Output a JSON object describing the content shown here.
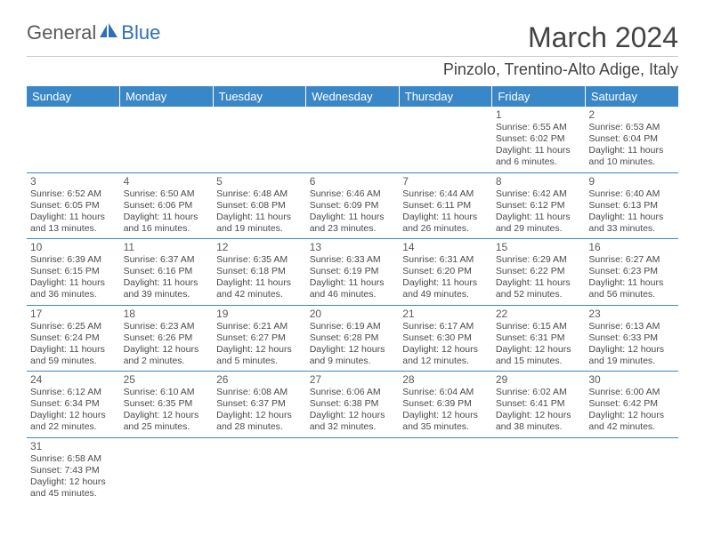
{
  "logo": {
    "general": "General",
    "blue": "Blue"
  },
  "title": "March 2024",
  "location": "Pinzolo, Trentino-Alto Adige, Italy",
  "colors": {
    "header_bg": "#3a87c8",
    "header_text": "#ffffff",
    "grid_line": "#3a87c8",
    "logo_blue": "#2f6fb5",
    "text": "#4a4a4a"
  },
  "daysOfWeek": [
    "Sunday",
    "Monday",
    "Tuesday",
    "Wednesday",
    "Thursday",
    "Friday",
    "Saturday"
  ],
  "weeks": [
    [
      null,
      null,
      null,
      null,
      null,
      {
        "n": "1",
        "sr": "Sunrise: 6:55 AM",
        "ss": "Sunset: 6:02 PM",
        "d1": "Daylight: 11 hours",
        "d2": "and 6 minutes."
      },
      {
        "n": "2",
        "sr": "Sunrise: 6:53 AM",
        "ss": "Sunset: 6:04 PM",
        "d1": "Daylight: 11 hours",
        "d2": "and 10 minutes."
      }
    ],
    [
      {
        "n": "3",
        "sr": "Sunrise: 6:52 AM",
        "ss": "Sunset: 6:05 PM",
        "d1": "Daylight: 11 hours",
        "d2": "and 13 minutes."
      },
      {
        "n": "4",
        "sr": "Sunrise: 6:50 AM",
        "ss": "Sunset: 6:06 PM",
        "d1": "Daylight: 11 hours",
        "d2": "and 16 minutes."
      },
      {
        "n": "5",
        "sr": "Sunrise: 6:48 AM",
        "ss": "Sunset: 6:08 PM",
        "d1": "Daylight: 11 hours",
        "d2": "and 19 minutes."
      },
      {
        "n": "6",
        "sr": "Sunrise: 6:46 AM",
        "ss": "Sunset: 6:09 PM",
        "d1": "Daylight: 11 hours",
        "d2": "and 23 minutes."
      },
      {
        "n": "7",
        "sr": "Sunrise: 6:44 AM",
        "ss": "Sunset: 6:11 PM",
        "d1": "Daylight: 11 hours",
        "d2": "and 26 minutes."
      },
      {
        "n": "8",
        "sr": "Sunrise: 6:42 AM",
        "ss": "Sunset: 6:12 PM",
        "d1": "Daylight: 11 hours",
        "d2": "and 29 minutes."
      },
      {
        "n": "9",
        "sr": "Sunrise: 6:40 AM",
        "ss": "Sunset: 6:13 PM",
        "d1": "Daylight: 11 hours",
        "d2": "and 33 minutes."
      }
    ],
    [
      {
        "n": "10",
        "sr": "Sunrise: 6:39 AM",
        "ss": "Sunset: 6:15 PM",
        "d1": "Daylight: 11 hours",
        "d2": "and 36 minutes."
      },
      {
        "n": "11",
        "sr": "Sunrise: 6:37 AM",
        "ss": "Sunset: 6:16 PM",
        "d1": "Daylight: 11 hours",
        "d2": "and 39 minutes."
      },
      {
        "n": "12",
        "sr": "Sunrise: 6:35 AM",
        "ss": "Sunset: 6:18 PM",
        "d1": "Daylight: 11 hours",
        "d2": "and 42 minutes."
      },
      {
        "n": "13",
        "sr": "Sunrise: 6:33 AM",
        "ss": "Sunset: 6:19 PM",
        "d1": "Daylight: 11 hours",
        "d2": "and 46 minutes."
      },
      {
        "n": "14",
        "sr": "Sunrise: 6:31 AM",
        "ss": "Sunset: 6:20 PM",
        "d1": "Daylight: 11 hours",
        "d2": "and 49 minutes."
      },
      {
        "n": "15",
        "sr": "Sunrise: 6:29 AM",
        "ss": "Sunset: 6:22 PM",
        "d1": "Daylight: 11 hours",
        "d2": "and 52 minutes."
      },
      {
        "n": "16",
        "sr": "Sunrise: 6:27 AM",
        "ss": "Sunset: 6:23 PM",
        "d1": "Daylight: 11 hours",
        "d2": "and 56 minutes."
      }
    ],
    [
      {
        "n": "17",
        "sr": "Sunrise: 6:25 AM",
        "ss": "Sunset: 6:24 PM",
        "d1": "Daylight: 11 hours",
        "d2": "and 59 minutes."
      },
      {
        "n": "18",
        "sr": "Sunrise: 6:23 AM",
        "ss": "Sunset: 6:26 PM",
        "d1": "Daylight: 12 hours",
        "d2": "and 2 minutes."
      },
      {
        "n": "19",
        "sr": "Sunrise: 6:21 AM",
        "ss": "Sunset: 6:27 PM",
        "d1": "Daylight: 12 hours",
        "d2": "and 5 minutes."
      },
      {
        "n": "20",
        "sr": "Sunrise: 6:19 AM",
        "ss": "Sunset: 6:28 PM",
        "d1": "Daylight: 12 hours",
        "d2": "and 9 minutes."
      },
      {
        "n": "21",
        "sr": "Sunrise: 6:17 AM",
        "ss": "Sunset: 6:30 PM",
        "d1": "Daylight: 12 hours",
        "d2": "and 12 minutes."
      },
      {
        "n": "22",
        "sr": "Sunrise: 6:15 AM",
        "ss": "Sunset: 6:31 PM",
        "d1": "Daylight: 12 hours",
        "d2": "and 15 minutes."
      },
      {
        "n": "23",
        "sr": "Sunrise: 6:13 AM",
        "ss": "Sunset: 6:33 PM",
        "d1": "Daylight: 12 hours",
        "d2": "and 19 minutes."
      }
    ],
    [
      {
        "n": "24",
        "sr": "Sunrise: 6:12 AM",
        "ss": "Sunset: 6:34 PM",
        "d1": "Daylight: 12 hours",
        "d2": "and 22 minutes."
      },
      {
        "n": "25",
        "sr": "Sunrise: 6:10 AM",
        "ss": "Sunset: 6:35 PM",
        "d1": "Daylight: 12 hours",
        "d2": "and 25 minutes."
      },
      {
        "n": "26",
        "sr": "Sunrise: 6:08 AM",
        "ss": "Sunset: 6:37 PM",
        "d1": "Daylight: 12 hours",
        "d2": "and 28 minutes."
      },
      {
        "n": "27",
        "sr": "Sunrise: 6:06 AM",
        "ss": "Sunset: 6:38 PM",
        "d1": "Daylight: 12 hours",
        "d2": "and 32 minutes."
      },
      {
        "n": "28",
        "sr": "Sunrise: 6:04 AM",
        "ss": "Sunset: 6:39 PM",
        "d1": "Daylight: 12 hours",
        "d2": "and 35 minutes."
      },
      {
        "n": "29",
        "sr": "Sunrise: 6:02 AM",
        "ss": "Sunset: 6:41 PM",
        "d1": "Daylight: 12 hours",
        "d2": "and 38 minutes."
      },
      {
        "n": "30",
        "sr": "Sunrise: 6:00 AM",
        "ss": "Sunset: 6:42 PM",
        "d1": "Daylight: 12 hours",
        "d2": "and 42 minutes."
      }
    ],
    [
      {
        "n": "31",
        "sr": "Sunrise: 6:58 AM",
        "ss": "Sunset: 7:43 PM",
        "d1": "Daylight: 12 hours",
        "d2": "and 45 minutes."
      },
      null,
      null,
      null,
      null,
      null,
      null
    ]
  ]
}
